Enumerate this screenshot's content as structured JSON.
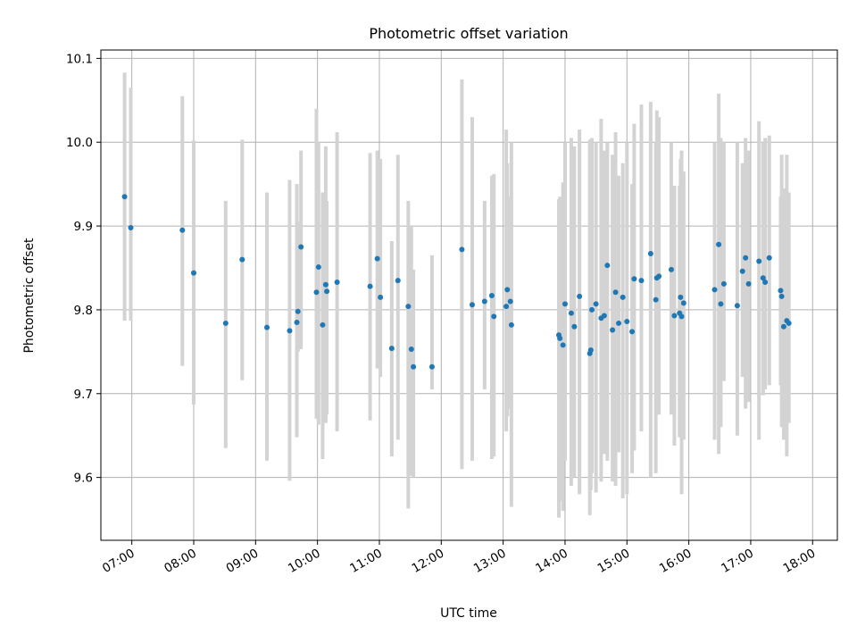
{
  "chart_data": {
    "type": "scatter",
    "title": "Photometric offset variation",
    "xlabel": "UTC time",
    "ylabel": "Photometric offset",
    "x_axis": {
      "kind": "time-of-day",
      "range": [
        "06:30",
        "18:24"
      ],
      "ticks": [
        "07:00",
        "08:00",
        "09:00",
        "10:00",
        "11:00",
        "12:00",
        "13:00",
        "14:00",
        "15:00",
        "16:00",
        "17:00",
        "18:00"
      ]
    },
    "y_axis": {
      "range": [
        9.525,
        10.11
      ],
      "ticks": [
        "9.6",
        "9.7",
        "9.8",
        "9.9",
        "10.0",
        "10.1"
      ]
    },
    "grid": true,
    "colors": {
      "points": "#1f77b4",
      "error_bars": "#d3d3d3",
      "grid": "#b0b0b0"
    },
    "series": [
      {
        "x": [
          "06:53",
          "06:59",
          "07:49",
          "08:00",
          "08:31",
          "08:47",
          "09:11",
          "09:33",
          "09:40",
          "09:41",
          "09:44",
          "09:59",
          "10:01",
          "10:05",
          "10:08",
          "10:09",
          "10:19",
          "10:51",
          "10:58",
          "11:01",
          "11:12",
          "11:18",
          "11:28",
          "11:31",
          "11:33",
          "11:51",
          "12:20",
          "12:30",
          "12:42",
          "12:49",
          "12:51",
          "13:03",
          "13:04",
          "13:07",
          "13:08",
          "13:54",
          "13:55",
          "13:58",
          "14:00",
          "14:06",
          "14:09",
          "14:14",
          "14:24",
          "14:25",
          "14:26",
          "14:30",
          "14:35",
          "14:38",
          "14:41",
          "14:46",
          "14:49",
          "14:52",
          "14:56",
          "15:00",
          "15:05",
          "15:07",
          "15:14",
          "15:23",
          "15:28",
          "15:29",
          "15:31",
          "15:43",
          "15:46",
          "15:51",
          "15:52",
          "15:53",
          "15:55",
          "16:25",
          "16:29",
          "16:31",
          "16:34",
          "16:47",
          "16:52",
          "16:55",
          "16:58",
          "17:08",
          "17:12",
          "17:14",
          "17:18",
          "17:29",
          "17:30",
          "17:32",
          "17:35",
          "17:37"
        ],
        "y": [
          9.935,
          9.898,
          9.895,
          9.844,
          9.784,
          9.86,
          9.779,
          9.775,
          9.785,
          9.798,
          9.875,
          9.821,
          9.851,
          9.782,
          9.83,
          9.822,
          9.833,
          9.828,
          9.861,
          9.815,
          9.754,
          9.835,
          9.804,
          9.753,
          9.732,
          9.732,
          9.872,
          9.806,
          9.81,
          9.817,
          9.792,
          9.804,
          9.824,
          9.81,
          9.782,
          9.77,
          9.766,
          9.758,
          9.807,
          9.796,
          9.78,
          9.816,
          9.748,
          9.752,
          9.8,
          9.807,
          9.79,
          9.793,
          9.853,
          9.776,
          9.821,
          9.784,
          9.815,
          9.786,
          9.774,
          9.837,
          9.835,
          9.867,
          9.812,
          9.838,
          9.84,
          9.848,
          9.793,
          9.796,
          9.815,
          9.792,
          9.808,
          9.824,
          9.878,
          9.807,
          9.831,
          9.805,
          9.846,
          9.862,
          9.831,
          9.858,
          9.838,
          9.833,
          9.862,
          9.823,
          9.816,
          9.78,
          9.787,
          9.784
        ],
        "err_low": [
          9.787,
          9.787,
          9.733,
          9.687,
          9.635,
          9.716,
          9.62,
          9.596,
          9.648,
          9.75,
          9.753,
          9.67,
          9.663,
          9.622,
          9.665,
          9.675,
          9.655,
          9.668,
          9.73,
          9.72,
          9.625,
          9.645,
          9.563,
          9.602,
          9.6,
          9.705,
          9.61,
          9.62,
          9.705,
          9.622,
          9.625,
          9.655,
          9.673,
          9.682,
          9.565,
          9.552,
          9.572,
          9.56,
          9.62,
          9.59,
          9.6,
          9.58,
          9.555,
          9.585,
          9.605,
          9.582,
          9.595,
          9.628,
          9.62,
          9.595,
          9.59,
          9.63,
          9.575,
          9.58,
          9.605,
          9.632,
          9.655,
          9.6,
          9.605,
          9.675,
          9.675,
          9.675,
          9.638,
          9.648,
          9.68,
          9.58,
          9.645,
          9.645,
          9.628,
          9.66,
          9.715,
          9.65,
          9.72,
          9.682,
          9.69,
          9.645,
          9.698,
          9.705,
          9.71,
          9.71,
          9.66,
          9.645,
          9.625,
          9.665
        ],
        "err_high": [
          10.083,
          10.065,
          10.055,
          10.002,
          9.93,
          10.003,
          9.94,
          9.955,
          9.95,
          9.905,
          9.99,
          10.04,
          10.0,
          9.94,
          9.995,
          9.93,
          10.012,
          9.987,
          9.99,
          9.98,
          9.882,
          9.985,
          9.93,
          9.9,
          9.848,
          9.865,
          10.075,
          10.03,
          9.93,
          9.96,
          9.962,
          10.015,
          9.975,
          9.935,
          10.0,
          9.932,
          9.935,
          9.952,
          10.0,
          10.005,
          9.995,
          10.015,
          10.003,
          9.945,
          10.005,
          10.0,
          10.028,
          9.99,
          10.0,
          9.985,
          10.012,
          9.96,
          9.975,
          10.0,
          9.95,
          10.022,
          10.045,
          10.048,
          10.0,
          10.038,
          10.03,
          10.0,
          9.948,
          9.948,
          9.98,
          9.99,
          9.965,
          10.0,
          10.058,
          10.005,
          10.0,
          10.0,
          9.975,
          10.005,
          9.99,
          10.025,
          10.0,
          10.005,
          10.008,
          9.935,
          9.985,
          9.945,
          9.985,
          9.94
        ]
      }
    ]
  }
}
